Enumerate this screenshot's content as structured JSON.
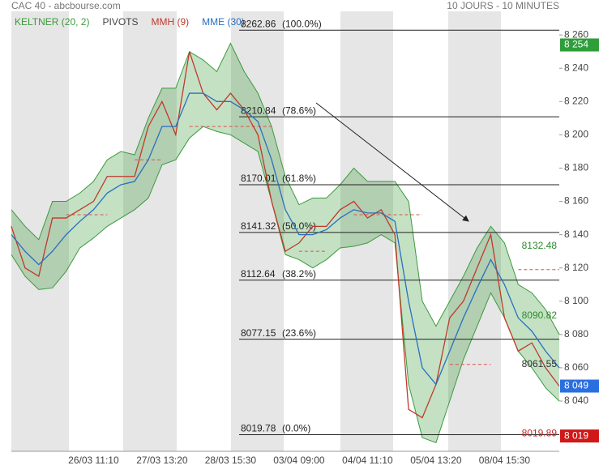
{
  "chart_data": {
    "type": "line",
    "title": "CAC 40 - abcbourse.com",
    "subtitle": "10 JOURS - 10 MINUTES",
    "x": [
      null,
      null,
      null,
      null,
      null,
      null,
      "26/03 11:10",
      null,
      null,
      null,
      null,
      "27/03 13:20",
      null,
      null,
      null,
      null,
      "28/03 15:30",
      null,
      null,
      null,
      null,
      "03/04 09:00",
      null,
      null,
      null,
      null,
      "04/04 11:10",
      null,
      null,
      null,
      null,
      "05/04 13:20",
      null,
      null,
      null,
      null,
      "08/04 15:30",
      null,
      null,
      null,
      null
    ],
    "ylim": [
      8009.8,
      8274.2
    ],
    "yticks": [
      {
        "value": 8040,
        "label": "8 040"
      },
      {
        "value": 8060,
        "label": "8 060"
      },
      {
        "value": 8080,
        "label": "8 080"
      },
      {
        "value": 8100,
        "label": "8 100"
      },
      {
        "value": 8120,
        "label": "8 120"
      },
      {
        "value": 8140,
        "label": "8 140"
      },
      {
        "value": 8160,
        "label": "8 160"
      },
      {
        "value": 8180,
        "label": "8 180"
      },
      {
        "value": 8200,
        "label": "8 200"
      },
      {
        "value": 8220,
        "label": "8 220"
      },
      {
        "value": 8240,
        "label": "8 240"
      },
      {
        "value": 8260,
        "label": "8 260"
      }
    ],
    "keltner": {
      "name": "KELTNER (20, 2)",
      "color": "#3a9a3a",
      "upper": [
        8155,
        8145,
        8137,
        8160,
        8160,
        8165,
        8172,
        8185,
        8190,
        8188,
        8210,
        8228,
        8228,
        8250,
        8245,
        8238,
        8255,
        8238,
        8225,
        8205,
        8175,
        8158,
        8162,
        8162,
        8170,
        8180,
        8172,
        8172,
        8172,
        8160,
        8100,
        8085,
        8100,
        8115,
        8132,
        8145,
        8135,
        8110,
        8105,
        8095,
        8080
      ],
      "lower": [
        8128,
        8115,
        8107,
        8108,
        8118,
        8132,
        8138,
        8145,
        8150,
        8155,
        8162,
        8182,
        8185,
        8198,
        8205,
        8202,
        8200,
        8195,
        8190,
        8160,
        8128,
        8125,
        8120,
        8125,
        8132,
        8133,
        8135,
        8140,
        8135,
        8050,
        8018,
        8015,
        8040,
        8065,
        8085,
        8105,
        8090,
        8070,
        8060,
        8048,
        8040
      ]
    },
    "series": [
      {
        "name": "PIVOTS",
        "color": "#d9534f",
        "values": [
          null,
          null,
          null,
          null,
          8152,
          8152,
          8152,
          8152,
          null,
          8185,
          8185,
          8185,
          null,
          8205,
          8205,
          8205,
          8205,
          8205,
          8205,
          8205,
          null,
          8130,
          8130,
          8130,
          null,
          8152,
          8152,
          8152,
          8152,
          8152,
          8152,
          null,
          8062,
          8062,
          8062,
          8062,
          null,
          8119,
          8119,
          8119,
          8119
        ]
      },
      {
        "name": "MMH (9)",
        "color": "#c0392b",
        "values": [
          8145,
          8120,
          8115,
          8150,
          8150,
          8155,
          8160,
          8175,
          8175,
          8175,
          8205,
          8220,
          8200,
          8250,
          8225,
          8215,
          8225,
          8215,
          8200,
          8160,
          8130,
          8135,
          8145,
          8145,
          8155,
          8160,
          8150,
          8155,
          8140,
          8035,
          8030,
          8050,
          8090,
          8100,
          8120,
          8140,
          8090,
          8070,
          8075,
          8060,
          8049
        ]
      },
      {
        "name": "MME (30)",
        "color": "#2a6fbf",
        "values": [
          8140,
          8130,
          8122,
          8130,
          8140,
          8148,
          8155,
          8165,
          8170,
          8172,
          8185,
          8205,
          8205,
          8225,
          8225,
          8220,
          8220,
          8215,
          8208,
          8185,
          8155,
          8140,
          8140,
          8143,
          8150,
          8155,
          8153,
          8153,
          8148,
          8100,
          8060,
          8050,
          8070,
          8090,
          8108,
          8125,
          8110,
          8090,
          8082,
          8070,
          8060
        ]
      }
    ],
    "fibonacci": [
      {
        "value": 8262.86,
        "percent": "(100.0%)"
      },
      {
        "value": 8210.84,
        "percent": "(78.6%)"
      },
      {
        "value": 8170.01,
        "percent": "(61.8%)"
      },
      {
        "value": 8141.32,
        "percent": "(50.0%)"
      },
      {
        "value": 8112.64,
        "percent": "(38.2%)"
      },
      {
        "value": 8077.15,
        "percent": "(23.6%)"
      },
      {
        "value": 8019.78,
        "percent": "(0.0%)"
      }
    ],
    "annotations": [
      {
        "value": 8132.48,
        "color": "#2e8b2e"
      },
      {
        "value": 8090.82,
        "color": "#2e8b2e"
      },
      {
        "value": 8061.55,
        "color": "#333333"
      },
      {
        "value": 8019.89,
        "color": "#d02020"
      }
    ],
    "price_tags": [
      {
        "value": 8254,
        "label": "8 254",
        "color": "#2e9e3a"
      },
      {
        "value": 8049,
        "label": "8 049",
        "color": "#2a6fdf"
      },
      {
        "value": 8019,
        "label": "8 019",
        "color": "#d01818"
      }
    ]
  }
}
